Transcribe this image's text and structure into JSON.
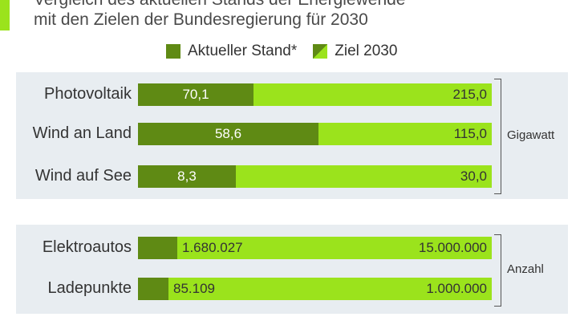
{
  "title": {
    "line1": "Vergleich des aktuellen Stands der Energiewende",
    "line2": "mit den Zielen der Bundesregierung für 2030"
  },
  "legend": {
    "current": "Aktueller Stand*",
    "goal": "Ziel 2030"
  },
  "colors": {
    "current": "#5f8a14",
    "goal": "#9be31c",
    "panel": "#e8edf1"
  },
  "chart_data": [
    {
      "type": "bar",
      "orientation": "horizontal",
      "unit": "Gigawatt",
      "categories": [
        "Photovoltaik",
        "Wind an Land",
        "Wind auf See"
      ],
      "series": [
        {
          "name": "Aktueller Stand*",
          "values": [
            70.1,
            58.6,
            8.3
          ],
          "labels": [
            "70,1",
            "58,6",
            "8,3"
          ]
        },
        {
          "name": "Ziel 2030",
          "values": [
            215.0,
            115.0,
            30.0
          ],
          "labels": [
            "215,0",
            "115,0",
            "30,0"
          ]
        }
      ]
    },
    {
      "type": "bar",
      "orientation": "horizontal",
      "unit": "Anzahl",
      "categories": [
        "Elektroautos",
        "Ladepunkte"
      ],
      "series": [
        {
          "name": "Aktueller Stand*",
          "values": [
            1680027,
            85109
          ],
          "labels": [
            "1.680.027",
            "85.109"
          ]
        },
        {
          "name": "Ziel 2030",
          "values": [
            15000000,
            1000000
          ],
          "labels": [
            "15.000.000",
            "1.000.000"
          ]
        }
      ]
    }
  ]
}
